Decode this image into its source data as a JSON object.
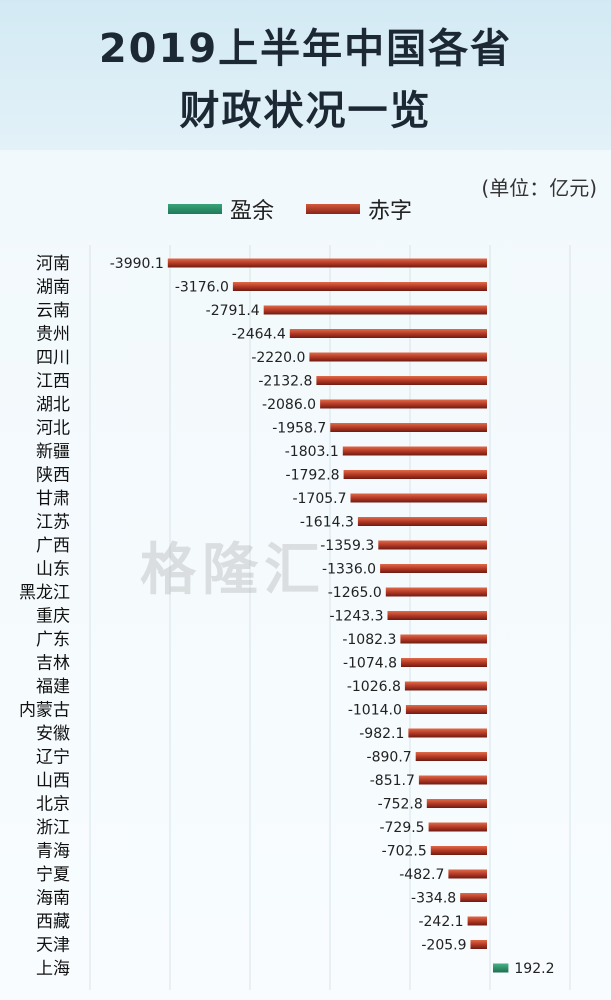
{
  "title": {
    "line1": "2019上半年中国各省",
    "line2": "财政状况一览"
  },
  "unit_label": "(单位：亿元)",
  "legend": {
    "surplus": "盈余",
    "deficit": "赤字"
  },
  "watermark": "格隆汇",
  "colors": {
    "surplus": "#2e9a6e",
    "deficit": "#b53a26",
    "grid": "#d7e4ea"
  },
  "chart_data": {
    "type": "bar",
    "orientation": "horizontal",
    "title": "2019上半年中国各省财政状况一览",
    "unit": "亿元",
    "legend_position": "top",
    "grid": true,
    "categories": [
      "河南",
      "湖南",
      "云南",
      "贵州",
      "四川",
      "江西",
      "湖北",
      "河北",
      "新疆",
      "陕西",
      "甘肃",
      "江苏",
      "广西",
      "山东",
      "黑龙江",
      "重庆",
      "广东",
      "吉林",
      "福建",
      "内蒙古",
      "安徽",
      "辽宁",
      "山西",
      "北京",
      "浙江",
      "青海",
      "宁夏",
      "海南",
      "西藏",
      "天津",
      "上海"
    ],
    "values": [
      -3990.1,
      -3176.0,
      -2791.4,
      -2464.4,
      -2220.0,
      -2132.8,
      -2086.0,
      -1958.7,
      -1803.1,
      -1792.8,
      -1705.7,
      -1614.3,
      -1359.3,
      -1336.0,
      -1265.0,
      -1243.3,
      -1082.3,
      -1074.8,
      -1026.8,
      -1014.0,
      -982.1,
      -890.7,
      -851.7,
      -752.8,
      -729.5,
      -702.5,
      -482.7,
      -334.8,
      -242.1,
      -205.9,
      192.2
    ],
    "labels": [
      "-3990.1",
      "-3176.0",
      "-2791.4",
      "-2464.4",
      "-2220.0",
      "-2132.8",
      "-2086.0",
      "-1958.7",
      "-1803.1",
      "-1792.8",
      "-1705.7",
      "-1614.3",
      "-1359.3",
      "-1336.0",
      "-1265.0",
      "-1243.3",
      "-1082.3",
      "-1074.8",
      "-1026.8",
      "-1014.0",
      "-982.1",
      "-890.7",
      "-851.7",
      "-752.8",
      "-729.5",
      "-702.5",
      "-482.7",
      "-334.8",
      "-242.1",
      "-205.9",
      "192.2"
    ],
    "series": [
      {
        "name": "赤字"
      },
      {
        "name": "盈余"
      }
    ]
  }
}
